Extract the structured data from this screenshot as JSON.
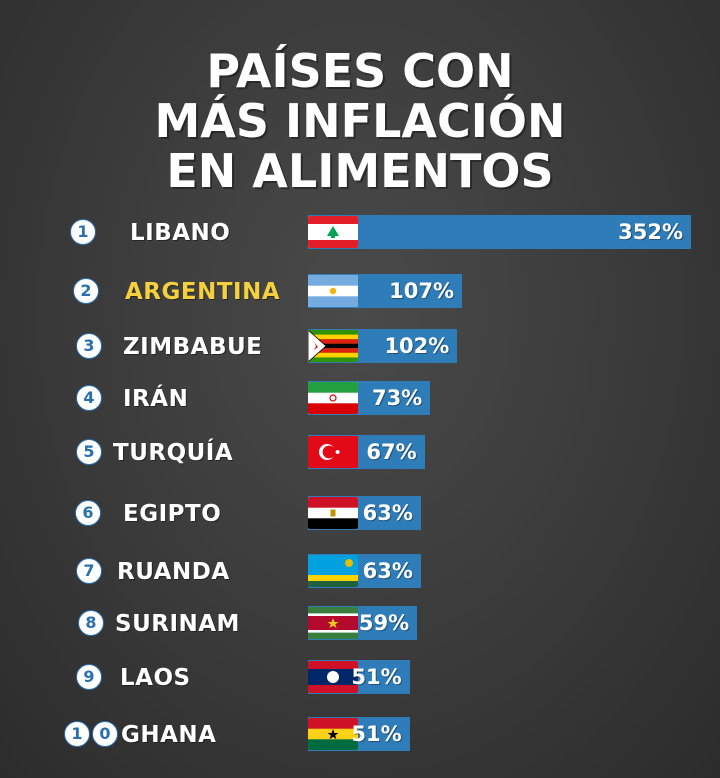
{
  "title_lines": [
    "PAÍSES CON",
    "MÁS INFLACIÓN",
    "EN ALIMENTOS"
  ],
  "chart_data": {
    "type": "bar",
    "orientation": "horizontal",
    "categories": [
      "LIBANO",
      "ARGENTINA",
      "ZIMBABUE",
      "IRÁN",
      "TURQUÍA",
      "EGIPTO",
      "RUANDA",
      "SURINAM",
      "LAOS",
      "GHANA"
    ],
    "values": [
      352,
      107,
      102,
      73,
      67,
      63,
      63,
      59,
      51,
      51
    ],
    "value_labels": [
      "352%",
      "107%",
      "102%",
      "73%",
      "67%",
      "63%",
      "63%",
      "59%",
      "51%",
      "51%"
    ],
    "ranks": [
      "1",
      "2",
      "3",
      "4",
      "5",
      "6",
      "7",
      "8",
      "9",
      "10"
    ],
    "highlight": "ARGENTINA",
    "highlight_color": "#f4d03f",
    "bar_color": "#2e7cb8"
  },
  "flags": [
    "lebanon-flag-icon",
    "argentina-flag-icon",
    "zimbabwe-flag-icon",
    "iran-flag-icon",
    "turkey-flag-icon",
    "egypt-flag-icon",
    "rwanda-flag-icon",
    "suriname-flag-icon",
    "laos-flag-icon",
    "ghana-flag-icon"
  ]
}
